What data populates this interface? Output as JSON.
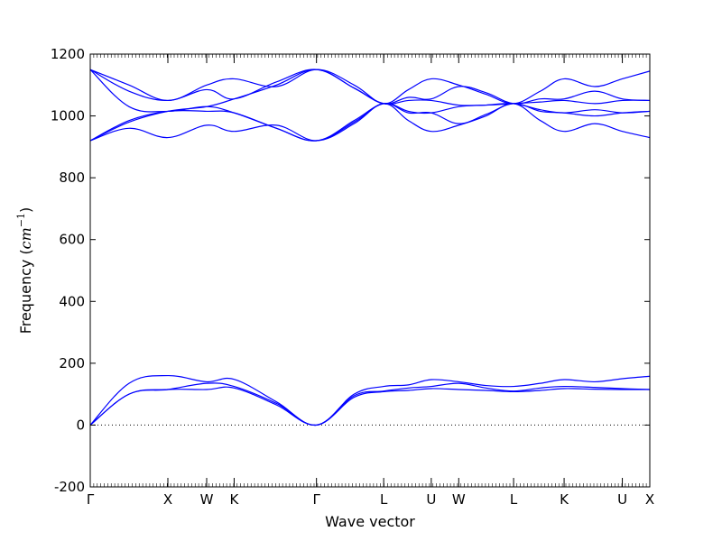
{
  "chart_data": {
    "type": "line",
    "title": "",
    "xlabel": "Wave vector",
    "ylabel": "Frequency",
    "ylabel_unit_base": "cm",
    "ylabel_unit_exp": "−1",
    "ylim": [
      -200,
      1200
    ],
    "yticks": [
      -200,
      0,
      200,
      400,
      600,
      800,
      1000,
      1200
    ],
    "xlim": [
      0,
      7.21
    ],
    "xticks": [
      {
        "label": "Γ",
        "x": 0.0
      },
      {
        "label": "X",
        "x": 1.0
      },
      {
        "label": "W",
        "x": 1.5
      },
      {
        "label": "K",
        "x": 1.854
      },
      {
        "label": "Γ",
        "x": 2.915
      },
      {
        "label": "L",
        "x": 3.781
      },
      {
        "label": "U",
        "x": 4.394
      },
      {
        "label": "W",
        "x": 4.748
      },
      {
        "label": "L",
        "x": 5.455
      },
      {
        "label": "K",
        "x": 6.106
      },
      {
        "label": "U",
        "x": 6.856
      },
      {
        "label": "X",
        "x": 7.21
      }
    ],
    "zero_line": true,
    "line_color": "#0000ff",
    "series": [
      {
        "x": [
          0.0,
          0.5,
          1.0,
          1.5,
          1.854,
          2.4,
          2.915,
          3.4,
          3.781,
          4.1,
          4.394,
          4.748,
          5.1,
          5.455,
          5.8,
          6.106,
          6.5,
          6.856,
          7.21
        ],
        "values": [
          0,
          135,
          160,
          140,
          148,
          75,
          0,
          100,
          125,
          130,
          147,
          140,
          128,
          125,
          135,
          147,
          140,
          150,
          158
        ]
      },
      {
        "x": [
          0.0,
          0.5,
          1.0,
          1.5,
          1.854,
          2.4,
          2.915,
          3.4,
          3.781,
          4.1,
          4.394,
          4.748,
          5.1,
          5.455,
          5.8,
          6.106,
          6.5,
          6.856,
          7.21
        ],
        "values": [
          0,
          100,
          115,
          135,
          125,
          70,
          0,
          95,
          110,
          120,
          125,
          135,
          120,
          110,
          120,
          125,
          122,
          118,
          115
        ]
      },
      {
        "x": [
          0.0,
          0.5,
          1.0,
          1.5,
          1.854,
          2.4,
          2.915,
          3.4,
          3.781,
          4.1,
          4.394,
          4.748,
          5.1,
          5.455,
          5.8,
          6.106,
          6.5,
          6.856,
          7.21
        ],
        "values": [
          0,
          100,
          115,
          115,
          120,
          65,
          0,
          90,
          108,
          112,
          118,
          115,
          112,
          108,
          112,
          118,
          116,
          115,
          115
        ]
      },
      {
        "x": [
          0.0,
          0.5,
          1.0,
          1.5,
          1.854,
          2.4,
          2.915,
          3.4,
          3.781,
          4.1,
          4.394,
          4.748,
          5.1,
          5.455,
          5.8,
          6.106,
          6.5,
          6.856,
          7.21
        ],
        "values": [
          1150,
          1100,
          1050,
          1100,
          1120,
          1095,
          1150,
          1100,
          1040,
          1085,
          1120,
          1100,
          1070,
          1040,
          1080,
          1120,
          1095,
          1120,
          1145
        ]
      },
      {
        "x": [
          0.0,
          0.5,
          1.0,
          1.5,
          1.854,
          2.4,
          2.915,
          3.4,
          3.781,
          4.1,
          4.394,
          4.748,
          5.1,
          5.455,
          5.8,
          6.106,
          6.5,
          6.856,
          7.21
        ],
        "values": [
          1150,
          1080,
          1050,
          1085,
          1055,
          1110,
          1150,
          1090,
          1040,
          1060,
          1055,
          1095,
          1075,
          1040,
          1055,
          1055,
          1080,
          1055,
          1050
        ]
      },
      {
        "x": [
          0.0,
          0.5,
          1.0,
          1.5,
          1.854,
          2.4,
          2.915,
          3.4,
          3.781,
          4.1,
          4.394,
          4.748,
          5.1,
          5.455,
          5.8,
          6.106,
          6.5,
          6.856,
          7.21
        ],
        "values": [
          920,
          980,
          1015,
          1030,
          1055,
          1100,
          1150,
          1090,
          1040,
          1050,
          1050,
          1035,
          1035,
          1040,
          1045,
          1050,
          1040,
          1050,
          1050
        ]
      },
      {
        "x": [
          0.0,
          0.5,
          1.0,
          1.5,
          1.854,
          2.4,
          2.915,
          3.4,
          3.781,
          4.1,
          4.394,
          4.748,
          5.1,
          5.455,
          5.8,
          6.106,
          6.5,
          6.856,
          7.21
        ],
        "values": [
          1150,
          1030,
          1015,
          1030,
          1010,
          960,
          920,
          985,
          1040,
          1015,
          1010,
          1030,
          1035,
          1040,
          1020,
          1010,
          1020,
          1010,
          1015
        ]
      },
      {
        "x": [
          0.0,
          0.5,
          1.0,
          1.5,
          1.854,
          2.4,
          2.915,
          3.4,
          3.781,
          4.1,
          4.394,
          4.748,
          5.1,
          5.455,
          5.8,
          6.106,
          6.5,
          6.856,
          7.21
        ],
        "values": [
          920,
          985,
          1015,
          1015,
          1010,
          960,
          920,
          980,
          1040,
          1010,
          1010,
          975,
          1005,
          1040,
          1015,
          1010,
          1000,
          1010,
          1015
        ]
      },
      {
        "x": [
          0.0,
          0.5,
          1.0,
          1.5,
          1.854,
          2.4,
          2.915,
          3.4,
          3.781,
          4.1,
          4.394,
          4.748,
          5.1,
          5.455,
          5.8,
          6.106,
          6.5,
          6.856,
          7.21
        ],
        "values": [
          920,
          960,
          930,
          970,
          950,
          970,
          920,
          975,
          1040,
          985,
          950,
          970,
          1000,
          1040,
          985,
          950,
          975,
          950,
          930
        ]
      }
    ]
  }
}
